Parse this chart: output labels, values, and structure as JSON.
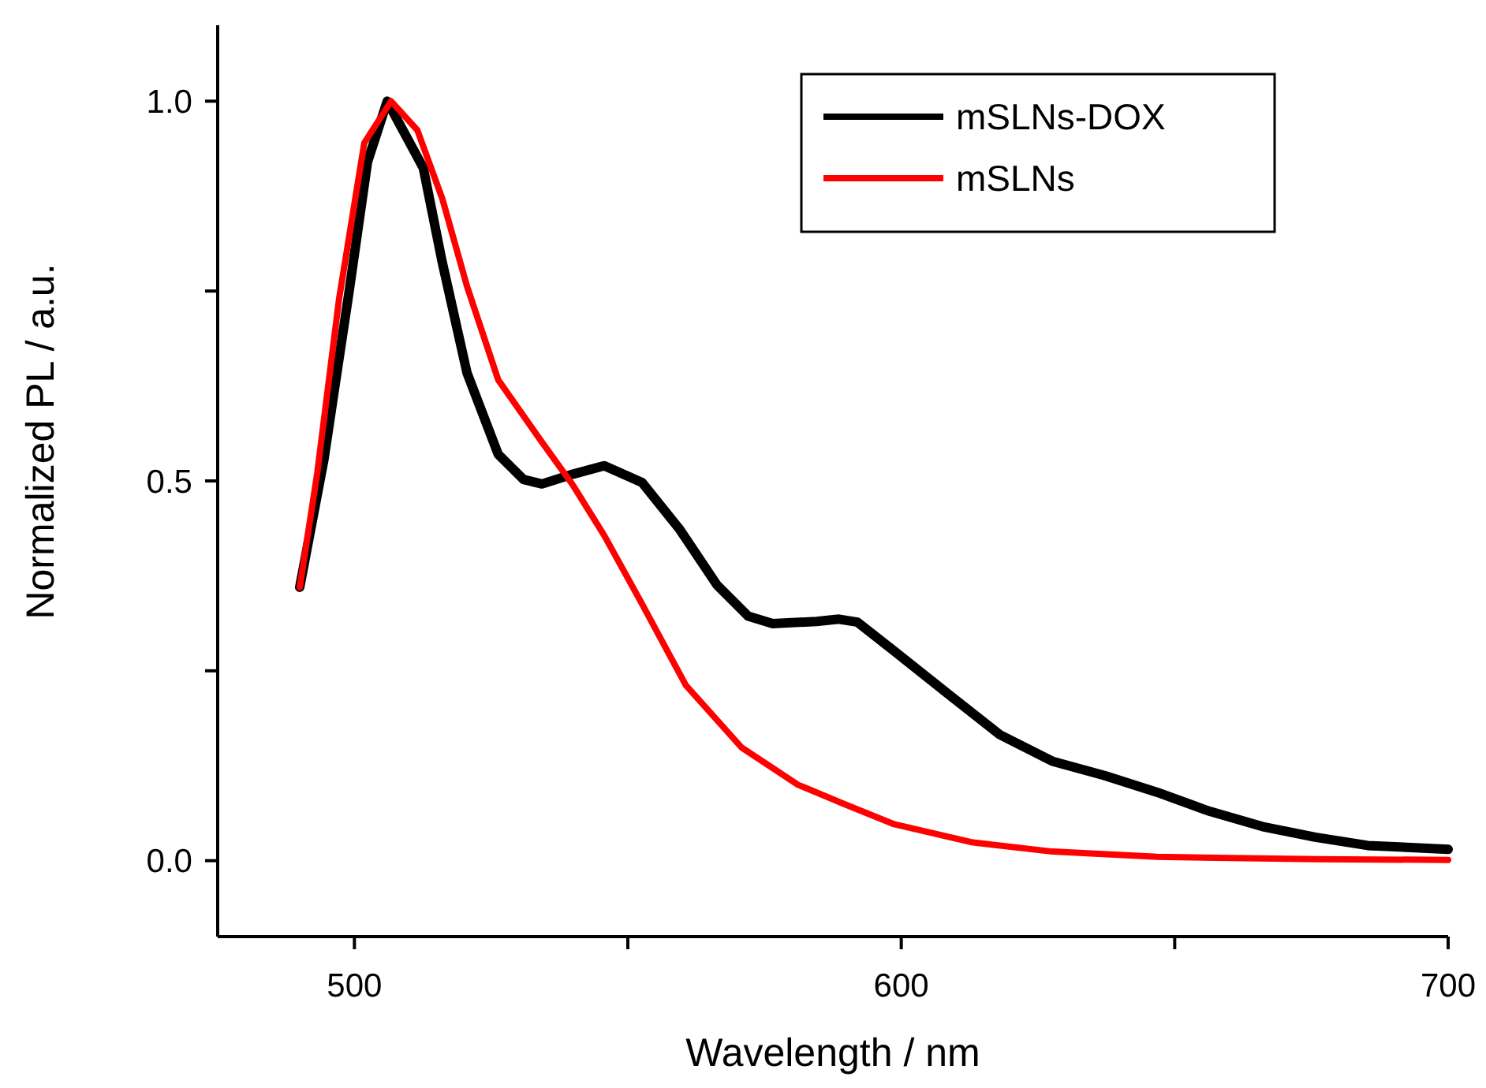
{
  "chart_data": {
    "type": "line",
    "xlabel": "Wavelength / nm",
    "ylabel": "Normalized PL / a.u.",
    "xlim": [
      475,
      700
    ],
    "ylim": [
      -0.1,
      1.1
    ],
    "xticks": [
      500,
      {
        "value": 550,
        "label": null
      },
      600,
      {
        "value": 650,
        "label": null
      },
      700
    ],
    "yticks": [
      {
        "value": 0,
        "label": "0.0"
      },
      {
        "value": 0.25,
        "label": null
      },
      {
        "value": 0.5,
        "label": "0.5"
      },
      {
        "value": 0.75,
        "label": null
      },
      {
        "value": 1,
        "label": "1.0"
      }
    ],
    "legend": "top right",
    "grid": false,
    "marker": "none",
    "line_style": "solid",
    "series": [
      {
        "name": "mSLNs-DOX",
        "color": "#000000",
        "x": [
          490,
          494.4,
          499,
          502.4,
          506,
          512.6,
          516,
          520.6,
          526.3,
          530.9,
          534.3,
          540,
          545.7,
          552.6,
          559.4,
          566.3,
          572,
          576.5,
          584.5,
          588.6,
          592,
          598.7,
          608.3,
          618,
          627.6,
          637.2,
          646.8,
          656.4,
          666,
          675.7,
          685.3,
          700
        ],
        "values": [
          0.36,
          0.527,
          0.748,
          0.92,
          1.0,
          0.912,
          0.79,
          0.642,
          0.535,
          0.502,
          0.496,
          0.509,
          0.52,
          0.498,
          0.437,
          0.363,
          0.322,
          0.312,
          0.315,
          0.318,
          0.314,
          0.276,
          0.221,
          0.166,
          0.131,
          0.112,
          0.09,
          0.065,
          0.045,
          0.031,
          0.02,
          0.015
        ]
      },
      {
        "name": "mSLNs",
        "color": "#ff0000",
        "x": [
          490,
          493.2,
          497.2,
          501.8,
          506.7,
          511.5,
          516.1,
          520.6,
          526.3,
          534.3,
          540,
          545.7,
          552.6,
          560.6,
          570.8,
          581.1,
          589.1,
          598.7,
          613.1,
          627.6,
          646.8,
          675.7,
          700
        ],
        "values": [
          0.36,
          0.51,
          0.74,
          0.945,
          1.0,
          0.962,
          0.871,
          0.756,
          0.633,
          0.551,
          0.494,
          0.428,
          0.338,
          0.231,
          0.149,
          0.1,
          0.076,
          0.048,
          0.024,
          0.012,
          0.005,
          0.002,
          0.001
        ]
      }
    ]
  }
}
